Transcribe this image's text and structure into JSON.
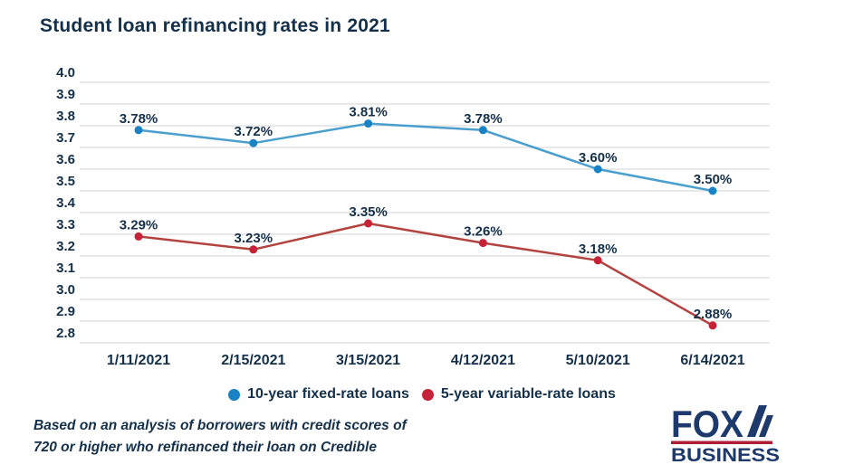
{
  "title": "Student loan refinancing rates in 2021",
  "chart_data": {
    "type": "line",
    "title": "Student loan refinancing rates in 2021",
    "x": [
      "1/11/2021",
      "2/15/2021",
      "3/15/2021",
      "4/12/2021",
      "5/10/2021",
      "6/14/2021"
    ],
    "series": [
      {
        "name": "10-year fixed-rate loans",
        "values": [
          3.78,
          3.72,
          3.81,
          3.78,
          3.6,
          3.5
        ],
        "point_labels": [
          "3.78%",
          "3.72%",
          "3.81%",
          "3.78%",
          "3.60%",
          "3.50%"
        ],
        "line_color": "#4a9fce",
        "dot_color": "#1a81c4"
      },
      {
        "name": "5-year variable-rate loans",
        "values": [
          3.29,
          3.23,
          3.35,
          3.26,
          3.18,
          2.88
        ],
        "point_labels": [
          "3.29%",
          "3.23%",
          "3.35%",
          "3.26%",
          "3.18%",
          "2.88%"
        ],
        "line_color": "#b2433f",
        "dot_color": "#c52237"
      }
    ],
    "ylim": [
      2.8,
      4.0
    ],
    "ytick_step": 0.1,
    "yticks": [
      "4.0",
      "3.9",
      "3.8",
      "3.7",
      "3.6",
      "3.5",
      "3.4",
      "3.3",
      "3.2",
      "3.1",
      "3.0",
      "2.9",
      "2.8"
    ],
    "grid": true,
    "legend_position": "bottom"
  },
  "legend": {
    "items": [
      {
        "label": "10-year fixed-rate loans",
        "color": "#1a81c4"
      },
      {
        "label": "5-year variable-rate loans",
        "color": "#c52237"
      }
    ]
  },
  "footnote": {
    "line1": "Based on an analysis of borrowers with credit scores of",
    "line2": "720 or higher who refinanced their loan on Credible"
  },
  "logo": {
    "brand": "FOX",
    "sub": "BUSINESS",
    "navy": "#1e3a6d",
    "red": "#b01e36"
  },
  "colors": {
    "text": "#14304a",
    "grid": "#e9e9e9",
    "background": "#ffffff"
  }
}
